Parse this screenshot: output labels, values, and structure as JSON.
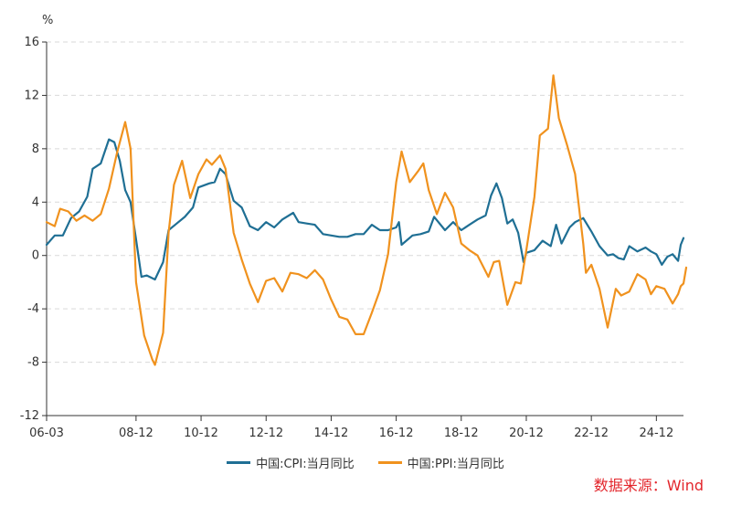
{
  "chart_data": {
    "type": "line",
    "y_unit": "%",
    "ylim": [
      -12,
      16
    ],
    "yticks": [
      16,
      12,
      8,
      4,
      0,
      -4,
      -8,
      -12
    ],
    "xlim": [
      "2006-03",
      "2025-10"
    ],
    "xtick_labels": [
      "06-03",
      "08-12",
      "10-12",
      "12-12",
      "14-12",
      "16-12",
      "18-12",
      "20-12",
      "22-12",
      "24-12"
    ],
    "xtick_dates": [
      "2006-03",
      "2008-12",
      "2010-12",
      "2012-12",
      "2014-12",
      "2016-12",
      "2018-12",
      "2020-12",
      "2022-12",
      "2024-12"
    ],
    "grid": "horizontal dashed",
    "legend_position": "bottom",
    "series": [
      {
        "name": "中国:CPI:当月同比",
        "color": "#1f6f94",
        "points": [
          [
            "2006-03",
            0.8
          ],
          [
            "2006-06",
            1.5
          ],
          [
            "2006-09",
            1.5
          ],
          [
            "2006-12",
            2.8
          ],
          [
            "2007-03",
            3.3
          ],
          [
            "2007-06",
            4.4
          ],
          [
            "2007-08",
            6.5
          ],
          [
            "2007-11",
            6.9
          ],
          [
            "2008-02",
            8.7
          ],
          [
            "2008-04",
            8.5
          ],
          [
            "2008-06",
            7.1
          ],
          [
            "2008-08",
            4.9
          ],
          [
            "2008-10",
            4.0
          ],
          [
            "2008-12",
            1.2
          ],
          [
            "2009-02",
            -1.6
          ],
          [
            "2009-04",
            -1.5
          ],
          [
            "2009-07",
            -1.8
          ],
          [
            "2009-10",
            -0.5
          ],
          [
            "2009-12",
            1.9
          ],
          [
            "2010-03",
            2.4
          ],
          [
            "2010-06",
            2.9
          ],
          [
            "2010-09",
            3.6
          ],
          [
            "2010-11",
            5.1
          ],
          [
            "2011-03",
            5.4
          ],
          [
            "2011-05",
            5.5
          ],
          [
            "2011-07",
            6.5
          ],
          [
            "2011-09",
            6.1
          ],
          [
            "2011-12",
            4.1
          ],
          [
            "2012-03",
            3.6
          ],
          [
            "2012-06",
            2.2
          ],
          [
            "2012-09",
            1.9
          ],
          [
            "2012-12",
            2.5
          ],
          [
            "2013-03",
            2.1
          ],
          [
            "2013-06",
            2.7
          ],
          [
            "2013-10",
            3.2
          ],
          [
            "2013-12",
            2.5
          ],
          [
            "2014-03",
            2.4
          ],
          [
            "2014-06",
            2.3
          ],
          [
            "2014-09",
            1.6
          ],
          [
            "2014-12",
            1.5
          ],
          [
            "2015-03",
            1.4
          ],
          [
            "2015-06",
            1.4
          ],
          [
            "2015-09",
            1.6
          ],
          [
            "2015-12",
            1.6
          ],
          [
            "2016-03",
            2.3
          ],
          [
            "2016-06",
            1.9
          ],
          [
            "2016-09",
            1.9
          ],
          [
            "2016-12",
            2.1
          ],
          [
            "2017-01",
            2.5
          ],
          [
            "2017-02",
            0.8
          ],
          [
            "2017-06",
            1.5
          ],
          [
            "2017-09",
            1.6
          ],
          [
            "2017-12",
            1.8
          ],
          [
            "2018-02",
            2.9
          ],
          [
            "2018-06",
            1.9
          ],
          [
            "2018-09",
            2.5
          ],
          [
            "2018-12",
            1.9
          ],
          [
            "2019-03",
            2.3
          ],
          [
            "2019-06",
            2.7
          ],
          [
            "2019-09",
            3.0
          ],
          [
            "2019-11",
            4.5
          ],
          [
            "2020-01",
            5.4
          ],
          [
            "2020-03",
            4.3
          ],
          [
            "2020-05",
            2.4
          ],
          [
            "2020-07",
            2.7
          ],
          [
            "2020-09",
            1.7
          ],
          [
            "2020-11",
            -0.5
          ],
          [
            "2020-12",
            0.2
          ],
          [
            "2021-03",
            0.4
          ],
          [
            "2021-06",
            1.1
          ],
          [
            "2021-09",
            0.7
          ],
          [
            "2021-11",
            2.3
          ],
          [
            "2022-01",
            0.9
          ],
          [
            "2022-04",
            2.1
          ],
          [
            "2022-06",
            2.5
          ],
          [
            "2022-09",
            2.8
          ],
          [
            "2022-12",
            1.8
          ],
          [
            "2023-03",
            0.7
          ],
          [
            "2023-06",
            0.0
          ],
          [
            "2023-08",
            0.1
          ],
          [
            "2023-10",
            -0.2
          ],
          [
            "2023-12",
            -0.3
          ],
          [
            "2024-02",
            0.7
          ],
          [
            "2024-05",
            0.3
          ],
          [
            "2024-08",
            0.6
          ],
          [
            "2024-10",
            0.3
          ],
          [
            "2024-12",
            0.1
          ],
          [
            "2025-02",
            -0.7
          ],
          [
            "2025-04",
            -0.1
          ],
          [
            "2025-06",
            0.1
          ],
          [
            "2025-08",
            -0.4
          ],
          [
            "2025-09",
            0.8
          ],
          [
            "2025-10",
            1.3
          ]
        ]
      },
      {
        "name": "中国:PPI:当月同比",
        "color": "#f0921e",
        "points": [
          [
            "2006-03",
            2.5
          ],
          [
            "2006-06",
            2.2
          ],
          [
            "2006-08",
            3.5
          ],
          [
            "2006-11",
            3.3
          ],
          [
            "2007-02",
            2.6
          ],
          [
            "2007-05",
            3.0
          ],
          [
            "2007-08",
            2.6
          ],
          [
            "2007-11",
            3.1
          ],
          [
            "2008-02",
            5.0
          ],
          [
            "2008-05",
            7.7
          ],
          [
            "2008-08",
            10.0
          ],
          [
            "2008-10",
            8.0
          ],
          [
            "2008-12",
            -2.0
          ],
          [
            "2009-03",
            -6.0
          ],
          [
            "2009-06",
            -7.8
          ],
          [
            "2009-07",
            -8.2
          ],
          [
            "2009-10",
            -5.8
          ],
          [
            "2009-12",
            1.7
          ],
          [
            "2010-02",
            5.3
          ],
          [
            "2010-05",
            7.1
          ],
          [
            "2010-08",
            4.3
          ],
          [
            "2010-11",
            6.1
          ],
          [
            "2011-02",
            7.2
          ],
          [
            "2011-04",
            6.8
          ],
          [
            "2011-07",
            7.5
          ],
          [
            "2011-09",
            6.5
          ],
          [
            "2011-12",
            1.7
          ],
          [
            "2012-03",
            -0.3
          ],
          [
            "2012-06",
            -2.1
          ],
          [
            "2012-09",
            -3.5
          ],
          [
            "2012-12",
            -1.9
          ],
          [
            "2013-03",
            -1.7
          ],
          [
            "2013-06",
            -2.7
          ],
          [
            "2013-09",
            -1.3
          ],
          [
            "2013-12",
            -1.4
          ],
          [
            "2014-03",
            -1.7
          ],
          [
            "2014-06",
            -1.1
          ],
          [
            "2014-09",
            -1.8
          ],
          [
            "2014-12",
            -3.3
          ],
          [
            "2015-03",
            -4.6
          ],
          [
            "2015-06",
            -4.8
          ],
          [
            "2015-09",
            -5.9
          ],
          [
            "2015-12",
            -5.9
          ],
          [
            "2016-03",
            -4.3
          ],
          [
            "2016-06",
            -2.6
          ],
          [
            "2016-09",
            0.1
          ],
          [
            "2016-12",
            5.5
          ],
          [
            "2017-02",
            7.8
          ],
          [
            "2017-05",
            5.5
          ],
          [
            "2017-08",
            6.3
          ],
          [
            "2017-10",
            6.9
          ],
          [
            "2017-12",
            4.9
          ],
          [
            "2018-03",
            3.1
          ],
          [
            "2018-06",
            4.7
          ],
          [
            "2018-09",
            3.6
          ],
          [
            "2018-12",
            0.9
          ],
          [
            "2019-03",
            0.4
          ],
          [
            "2019-06",
            0.0
          ],
          [
            "2019-09",
            -1.2
          ],
          [
            "2019-10",
            -1.6
          ],
          [
            "2019-12",
            -0.5
          ],
          [
            "2020-02",
            -0.4
          ],
          [
            "2020-05",
            -3.7
          ],
          [
            "2020-08",
            -2.0
          ],
          [
            "2020-10",
            -2.1
          ],
          [
            "2020-12",
            0.4
          ],
          [
            "2021-03",
            4.4
          ],
          [
            "2021-05",
            9.0
          ],
          [
            "2021-08",
            9.5
          ],
          [
            "2021-10",
            13.5
          ],
          [
            "2021-12",
            10.3
          ],
          [
            "2022-03",
            8.3
          ],
          [
            "2022-06",
            6.1
          ],
          [
            "2022-09",
            0.9
          ],
          [
            "2022-10",
            -1.3
          ],
          [
            "2022-12",
            -0.7
          ],
          [
            "2023-03",
            -2.5
          ],
          [
            "2023-06",
            -5.4
          ],
          [
            "2023-09",
            -2.5
          ],
          [
            "2023-11",
            -3.0
          ],
          [
            "2024-02",
            -2.7
          ],
          [
            "2024-05",
            -1.4
          ],
          [
            "2024-08",
            -1.8
          ],
          [
            "2024-10",
            -2.9
          ],
          [
            "2024-12",
            -2.3
          ],
          [
            "2025-03",
            -2.5
          ],
          [
            "2025-06",
            -3.6
          ],
          [
            "2025-08",
            -2.9
          ],
          [
            "2025-09",
            -2.3
          ],
          [
            "2025-10",
            -2.1
          ],
          [
            "2025-11",
            -0.9
          ]
        ]
      }
    ]
  },
  "source_note": "数据来源：Wind"
}
